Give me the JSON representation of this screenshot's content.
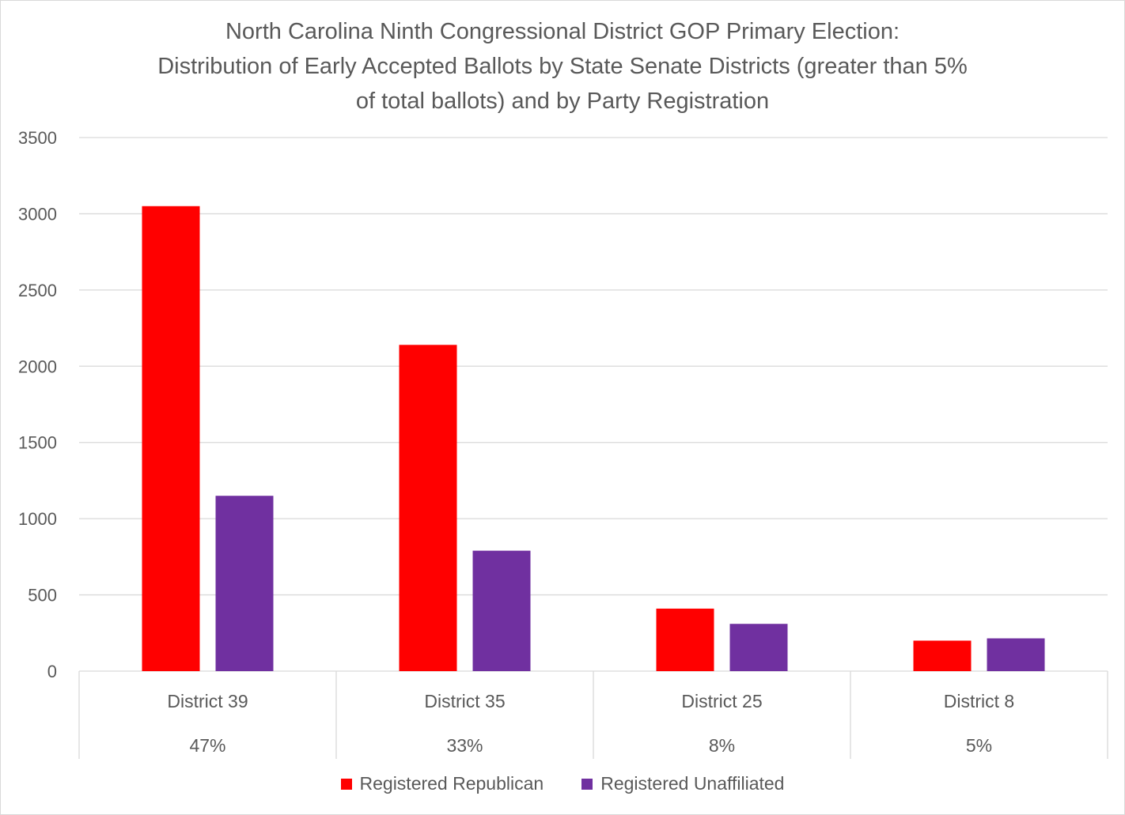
{
  "chart_data": {
    "type": "bar",
    "title_lines": [
      "North Carolina Ninth Congressional District GOP Primary Election:",
      "Distribution of Early Accepted Ballots by State Senate Districts (greater than 5%",
      "of total ballots) and by Party Registration"
    ],
    "categories": [
      "District 39",
      "District 35",
      "District 25",
      "District 8"
    ],
    "category_sublabels": [
      "47%",
      "33%",
      "8%",
      "5%"
    ],
    "series": [
      {
        "name": "Registered Republican",
        "color": "#ff0000",
        "values": [
          3050,
          2140,
          410,
          200
        ]
      },
      {
        "name": "Registered Unaffiliated",
        "color": "#7030a0",
        "values": [
          1150,
          790,
          310,
          215
        ]
      }
    ],
    "ylim": [
      0,
      3500
    ],
    "y_ticks": [
      0,
      500,
      1000,
      1500,
      2000,
      2500,
      3000,
      3500
    ],
    "grid": true,
    "legend_position": "bottom",
    "xlabel": "",
    "ylabel": ""
  }
}
